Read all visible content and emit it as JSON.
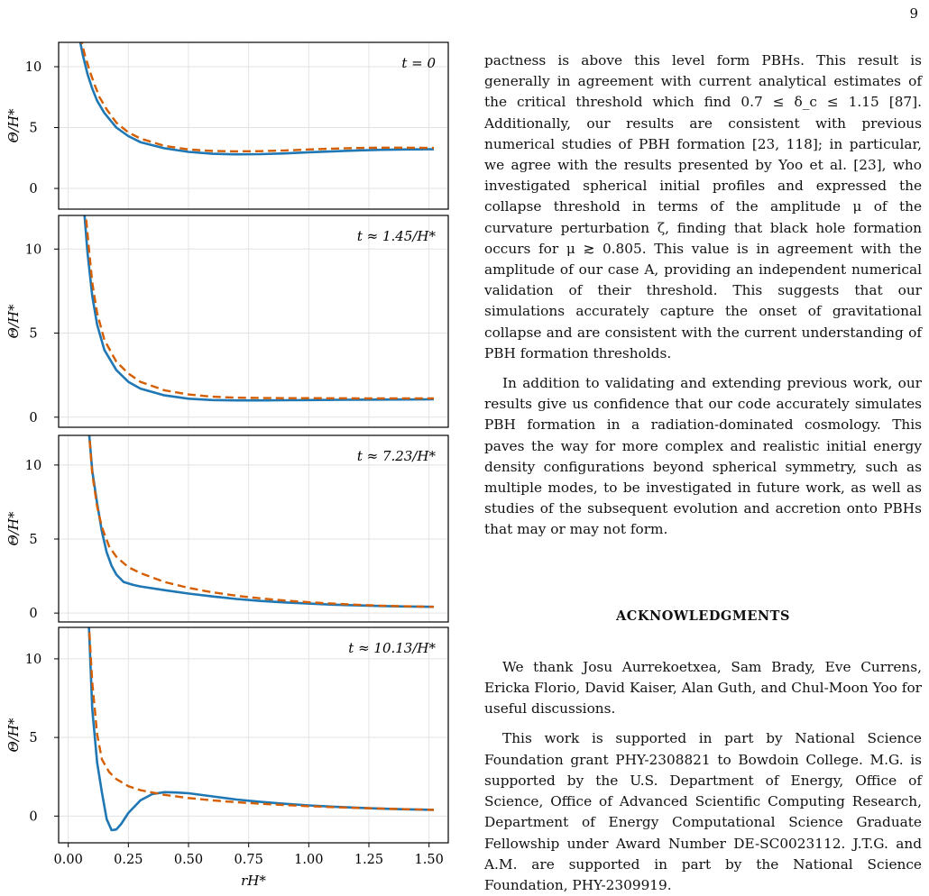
{
  "page_number": "9",
  "figure": {
    "ylabel": "Θ/H*",
    "xlabel": "rH*",
    "y_ticks": [
      "0",
      "5",
      "10"
    ],
    "x_ticks": [
      "0.00",
      "0.25",
      "0.50",
      "0.75",
      "1.00",
      "1.25",
      "1.50"
    ],
    "colors": {
      "solid": "#1f77b4",
      "dashed": "#d55e00",
      "grid": "#e3e3e3"
    }
  },
  "chart_data": [
    {
      "type": "line",
      "title": "t = 0",
      "xlim": [
        -0.04,
        1.58
      ],
      "ylim": [
        -1.7,
        12.0
      ],
      "grid": true,
      "series": [
        {
          "style": "solid",
          "x": [
            0.045,
            0.06,
            0.08,
            0.1,
            0.12,
            0.15,
            0.2,
            0.25,
            0.3,
            0.4,
            0.5,
            0.6,
            0.7,
            0.8,
            0.9,
            1.0,
            1.1,
            1.2,
            1.3,
            1.4,
            1.5,
            1.52
          ],
          "y": [
            12.5,
            11.0,
            9.4,
            8.2,
            7.2,
            6.2,
            5.0,
            4.3,
            3.8,
            3.3,
            3.0,
            2.85,
            2.8,
            2.82,
            2.88,
            2.97,
            3.05,
            3.12,
            3.17,
            3.2,
            3.22,
            3.22
          ]
        },
        {
          "style": "dashed",
          "x": [
            0.05,
            0.07,
            0.09,
            0.11,
            0.13,
            0.16,
            0.2,
            0.25,
            0.3,
            0.4,
            0.5,
            0.6,
            0.7,
            0.8,
            0.9,
            1.0,
            1.1,
            1.2,
            1.3,
            1.4,
            1.5,
            1.52
          ],
          "y": [
            12.5,
            10.9,
            9.6,
            8.5,
            7.5,
            6.5,
            5.4,
            4.6,
            4.1,
            3.5,
            3.2,
            3.08,
            3.05,
            3.06,
            3.12,
            3.2,
            3.27,
            3.32,
            3.35,
            3.35,
            3.33,
            3.33
          ]
        }
      ]
    },
    {
      "type": "line",
      "title": "t ≈ 1.45/H*",
      "xlim": [
        -0.04,
        1.58
      ],
      "ylim": [
        -0.6,
        12.0
      ],
      "grid": true,
      "series": [
        {
          "style": "solid",
          "x": [
            0.065,
            0.08,
            0.1,
            0.12,
            0.15,
            0.2,
            0.25,
            0.3,
            0.4,
            0.5,
            0.6,
            0.7,
            0.8,
            0.9,
            1.0,
            1.2,
            1.4,
            1.52
          ],
          "y": [
            12.5,
            9.8,
            7.2,
            5.5,
            4.0,
            2.8,
            2.1,
            1.7,
            1.3,
            1.1,
            1.02,
            1.0,
            1.0,
            1.01,
            1.02,
            1.04,
            1.05,
            1.06
          ]
        },
        {
          "style": "dashed",
          "x": [
            0.07,
            0.085,
            0.1,
            0.12,
            0.15,
            0.2,
            0.25,
            0.3,
            0.4,
            0.5,
            0.6,
            0.7,
            0.8,
            0.9,
            1.0,
            1.2,
            1.4,
            1.52
          ],
          "y": [
            12.5,
            10.2,
            8.0,
            6.2,
            4.6,
            3.3,
            2.6,
            2.1,
            1.6,
            1.35,
            1.22,
            1.16,
            1.14,
            1.13,
            1.13,
            1.12,
            1.12,
            1.12
          ]
        }
      ]
    },
    {
      "type": "line",
      "title": "t ≈ 7.23/H*",
      "xlim": [
        -0.04,
        1.58
      ],
      "ylim": [
        -0.6,
        12.0
      ],
      "grid": true,
      "series": [
        {
          "style": "solid",
          "x": [
            0.085,
            0.1,
            0.12,
            0.14,
            0.16,
            0.18,
            0.2,
            0.23,
            0.27,
            0.3,
            0.4,
            0.5,
            0.6,
            0.7,
            0.8,
            0.9,
            1.0,
            1.1,
            1.2,
            1.3,
            1.4,
            1.52
          ],
          "y": [
            12.5,
            9.6,
            7.4,
            5.5,
            4.1,
            3.2,
            2.6,
            2.1,
            1.9,
            1.8,
            1.55,
            1.32,
            1.12,
            0.95,
            0.82,
            0.72,
            0.64,
            0.57,
            0.52,
            0.48,
            0.45,
            0.42
          ]
        },
        {
          "style": "dashed",
          "x": [
            0.085,
            0.1,
            0.12,
            0.14,
            0.17,
            0.2,
            0.25,
            0.3,
            0.4,
            0.5,
            0.6,
            0.7,
            0.8,
            0.9,
            1.0,
            1.1,
            1.2,
            1.3,
            1.4,
            1.52
          ],
          "y": [
            12.5,
            9.4,
            7.2,
            5.8,
            4.5,
            3.8,
            3.1,
            2.7,
            2.1,
            1.7,
            1.4,
            1.17,
            0.99,
            0.85,
            0.73,
            0.64,
            0.56,
            0.5,
            0.46,
            0.42
          ]
        }
      ]
    },
    {
      "type": "line",
      "title": "t ≈ 10.13/H*",
      "xlim": [
        -0.04,
        1.58
      ],
      "ylim": [
        -1.7,
        12.0
      ],
      "grid": true,
      "series": [
        {
          "style": "solid",
          "x": [
            0.085,
            0.1,
            0.12,
            0.14,
            0.16,
            0.18,
            0.2,
            0.22,
            0.25,
            0.3,
            0.35,
            0.4,
            0.45,
            0.5,
            0.6,
            0.7,
            0.8,
            0.9,
            1.0,
            1.1,
            1.2,
            1.3,
            1.4,
            1.52
          ],
          "y": [
            12.5,
            6.8,
            3.4,
            1.5,
            -0.2,
            -0.9,
            -0.85,
            -0.5,
            0.2,
            1.0,
            1.4,
            1.52,
            1.5,
            1.45,
            1.25,
            1.05,
            0.9,
            0.78,
            0.68,
            0.6,
            0.53,
            0.47,
            0.43,
            0.4
          ]
        },
        {
          "style": "dashed",
          "x": [
            0.085,
            0.1,
            0.12,
            0.14,
            0.17,
            0.2,
            0.25,
            0.3,
            0.4,
            0.5,
            0.6,
            0.7,
            0.8,
            0.9,
            1.0,
            1.1,
            1.2,
            1.3,
            1.4,
            1.52
          ],
          "y": [
            12.5,
            8.5,
            5.2,
            3.6,
            2.8,
            2.35,
            1.9,
            1.65,
            1.35,
            1.15,
            1.0,
            0.88,
            0.78,
            0.7,
            0.63,
            0.57,
            0.52,
            0.48,
            0.44,
            0.4
          ]
        }
      ]
    }
  ],
  "text": {
    "p1": "pactness is above this level form PBHs. This result is generally in agreement with current analytical estimates of the critical threshold which find 0.7 ≤ δ_c ≤ 1.15 [87]. Additionally, our results are consistent with previous numerical studies of PBH formation [23, 118]; in particular, we agree with the results presented by Yoo et al. [23], who investigated spherical initial profiles and expressed the collapse threshold in terms of the amplitude μ of the curvature perturbation ζ, finding that black hole formation occurs for μ ≳ 0.805. This value is in agreement with the amplitude of our case A, providing an independent numerical validation of their threshold. This suggests that our simulations accurately capture the onset of gravitational collapse and are consistent with the current understanding of PBH formation thresholds.",
    "p2": "In addition to validating and extending previous work, our results give us confidence that our code accurately simulates PBH formation in a radiation-dominated cosmology. This paves the way for more complex and realistic initial energy density configurations beyond spherical symmetry, such as multiple modes, to be investigated in future work, as well as studies of the subsequent evolution and accretion onto PBHs that may or may not form.",
    "ack_heading": "ACKNOWLEDGMENTS",
    "p3": "We thank Josu Aurrekoetxea, Sam Brady, Eve Currens, Ericka Florio, David Kaiser, Alan Guth, and Chul-Moon Yoo for useful discussions.",
    "p4": "This work is supported in part by National Science Foundation grant PHY-2308821 to Bowdoin College. M.G. is supported by the U.S. Department of Energy, Office of Science, Office of Advanced Scientific Computing Research, Department of Energy Computational Science Graduate Fellowship under Award Number DE-SC0023112. J.T.G. and A.M. are supported in part by the National Science Foundation, PHY-2309919."
  }
}
